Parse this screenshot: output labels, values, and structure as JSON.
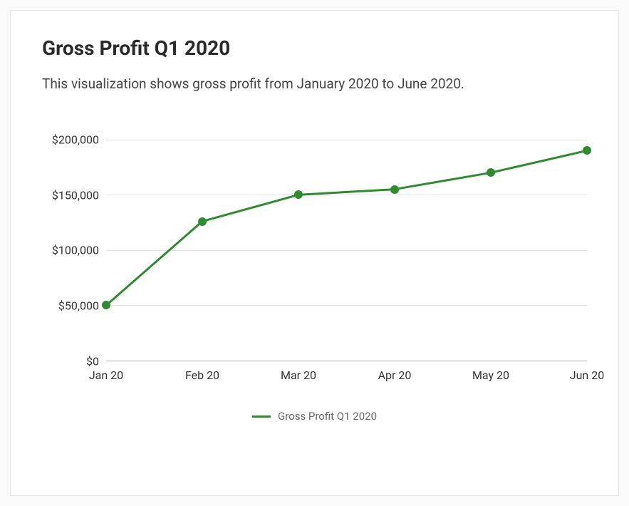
{
  "card": {
    "title": "Gross Profit Q1 2020",
    "subtitle": "This visualization shows gross profit from January 2020 to June 2020."
  },
  "chart": {
    "type": "line",
    "series_name": "Gross Profit Q1 2020",
    "x_labels": [
      "Jan 20",
      "Feb 20",
      "Mar 20",
      "Apr 20",
      "May 20",
      "Jun 20"
    ],
    "y_values": [
      50000,
      126000,
      150000,
      155000,
      170000,
      190000
    ],
    "y_ticks": [
      0,
      50000,
      100000,
      150000,
      200000
    ],
    "y_tick_labels": [
      "$0",
      "$50,000",
      "$100,000",
      "$150,000",
      "$200,000"
    ],
    "y_min": 0,
    "y_max": 225000,
    "line_color": "#2e8b2e",
    "line_width": 3,
    "marker_radius": 6,
    "marker_fill": "#2e8b2e",
    "grid_color": "#e2e2e2",
    "axis_color": "#b0b0b0",
    "background_color": "#ffffff",
    "tick_font_size": 16,
    "tick_color": "#333333",
    "legend_text_color": "#666666",
    "legend_font_size": 15
  }
}
